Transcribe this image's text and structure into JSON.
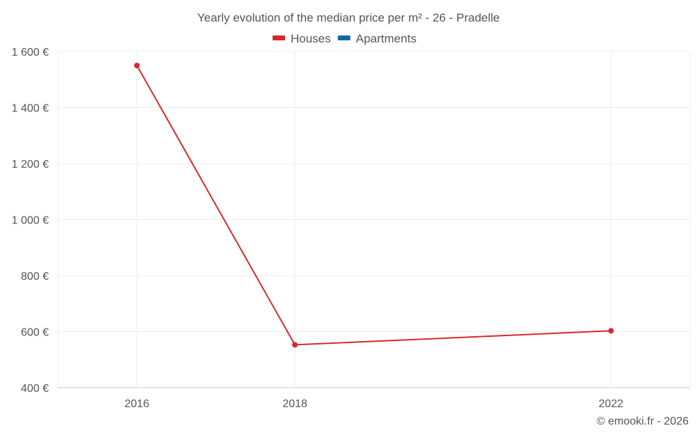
{
  "chart_data": {
    "type": "line",
    "title": "Yearly evolution of the median price per m² - 26 - Pradelle",
    "categories": [
      "2016",
      "2018",
      "2022"
    ],
    "series": [
      {
        "name": "Houses",
        "color": "#d42a2a",
        "values": [
          1550,
          553,
          603
        ]
      },
      {
        "name": "Apartments",
        "color": "#0f6ba0",
        "values": [
          null,
          null,
          null
        ]
      }
    ],
    "ylim": [
      400,
      1600
    ],
    "yticks": [
      400,
      600,
      800,
      1000,
      1200,
      1400,
      1600
    ],
    "ytick_labels": [
      "400 €",
      "600 €",
      "800 €",
      "1 000 €",
      "1 200 €",
      "1 400 €",
      "1 600 €"
    ],
    "xlabel": "",
    "ylabel": "",
    "grid": true,
    "legend_position": "top-center"
  },
  "credit": "© emooki.fr - 2026"
}
